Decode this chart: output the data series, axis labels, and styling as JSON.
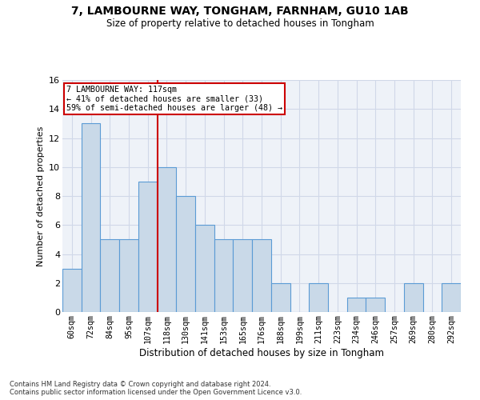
{
  "title1": "7, LAMBOURNE WAY, TONGHAM, FARNHAM, GU10 1AB",
  "title2": "Size of property relative to detached houses in Tongham",
  "xlabel": "Distribution of detached houses by size in Tongham",
  "ylabel": "Number of detached properties",
  "categories": [
    "60sqm",
    "72sqm",
    "84sqm",
    "95sqm",
    "107sqm",
    "118sqm",
    "130sqm",
    "141sqm",
    "153sqm",
    "165sqm",
    "176sqm",
    "188sqm",
    "199sqm",
    "211sqm",
    "223sqm",
    "234sqm",
    "246sqm",
    "257sqm",
    "269sqm",
    "280sqm",
    "292sqm"
  ],
  "values": [
    3,
    13,
    5,
    5,
    9,
    10,
    8,
    6,
    5,
    5,
    5,
    2,
    0,
    2,
    0,
    1,
    1,
    0,
    2,
    0,
    2
  ],
  "bar_color": "#c9d9e8",
  "bar_edge_color": "#5b9bd5",
  "grid_color": "#d0d8e8",
  "background_color": "#eef2f8",
  "vline_index": 5,
  "vline_color": "#cc0000",
  "annotation_line1": "7 LAMBOURNE WAY: 117sqm",
  "annotation_line2": "← 41% of detached houses are smaller (33)",
  "annotation_line3": "59% of semi-detached houses are larger (48) →",
  "annotation_box_color": "#cc0000",
  "ylim": [
    0,
    16
  ],
  "yticks": [
    0,
    2,
    4,
    6,
    8,
    10,
    12,
    14,
    16
  ],
  "footer1": "Contains HM Land Registry data © Crown copyright and database right 2024.",
  "footer2": "Contains public sector information licensed under the Open Government Licence v3.0."
}
